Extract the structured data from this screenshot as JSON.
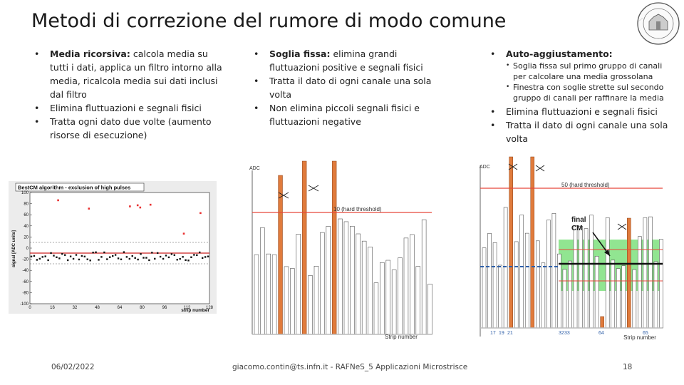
{
  "title": "Metodi di correzione del rumore di modo comune",
  "col1": {
    "items": [
      {
        "bold": "Media ricorsiva:",
        "text": " calcola media su tutti i dati, applica un filtro intorno alla media, ricalcola media sui dati inclusi dal filtro"
      },
      {
        "bold": "",
        "text": "Elimina fluttuazioni e segnali fisici"
      },
      {
        "bold": "",
        "text": "Tratta ogni dato due volte (aumento risorse di esecuzione)"
      }
    ]
  },
  "col2": {
    "items": [
      {
        "bold": "Soglia fissa:",
        "text": " elimina grandi fluttuazioni positive e segnali fisici"
      },
      {
        "bold": "",
        "text": "Tratta il dato di ogni canale una sola volta"
      },
      {
        "bold": "",
        "text": "Non elimina piccoli segnali fisici e fluttuazioni negative"
      }
    ]
  },
  "col3": {
    "head": "Auto-aggiustamento:",
    "sub": [
      "Soglia fissa sul primo gruppo di canali per calcolare una media grossolana",
      "Finestra con soglie strette sul secondo gruppo di canali per raffinare la media"
    ],
    "items": [
      "Elimina fluttuazioni e segnali fisici",
      "Tratta il dato di ogni canale una sola volta"
    ]
  },
  "fig1": {
    "banner": "BestCM algorithm - exclusion of high pulses",
    "ylabel": "signal [ADC units]",
    "xlabel": "strip number",
    "yticks": [
      "100",
      "80",
      "60",
      "40",
      "20",
      "0",
      "-20",
      "-40",
      "-60",
      "-80",
      "-100"
    ],
    "xticks": [
      "0",
      "16",
      "32",
      "48",
      "64",
      "80",
      "96",
      "112",
      "128"
    ]
  },
  "fig2": {
    "yaxis": "ADC",
    "threshold": "10 (hard threshold)",
    "xlabel": "Strip number"
  },
  "fig3": {
    "yaxis": "ADC",
    "threshold": "50 (hard threshold)",
    "final": "final\nCM",
    "xlabel": "Strip number",
    "xticks": [
      "17",
      "19",
      "21",
      "32",
      "33",
      "64",
      "65"
    ]
  },
  "footer": {
    "date": "06/02/2022",
    "center": "giacomo.contin@ts.infn.it - RAFNeS_5 Applicazioni Microstrisce",
    "page": "18"
  },
  "colors": {
    "orange": "#e07b3c",
    "red": "#e8473b",
    "green": "#7ee07e",
    "blue": "#2e5fa8"
  }
}
